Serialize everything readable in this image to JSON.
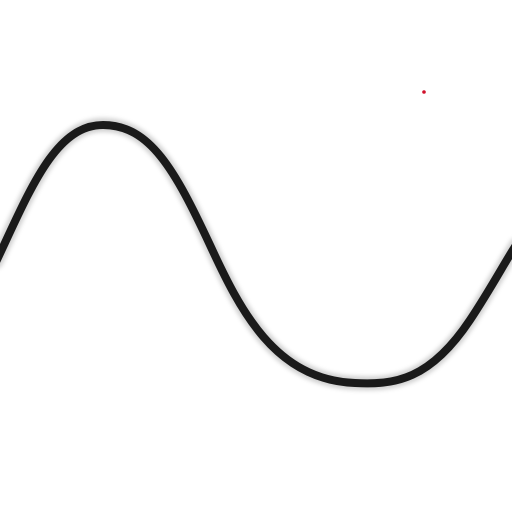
{
  "colors": {
    "background": "#ffffff",
    "stroke": "#1a1a1a",
    "dot": "#d0102a"
  },
  "elements": {
    "curve": "wavy-line",
    "marker": "red-dot"
  }
}
